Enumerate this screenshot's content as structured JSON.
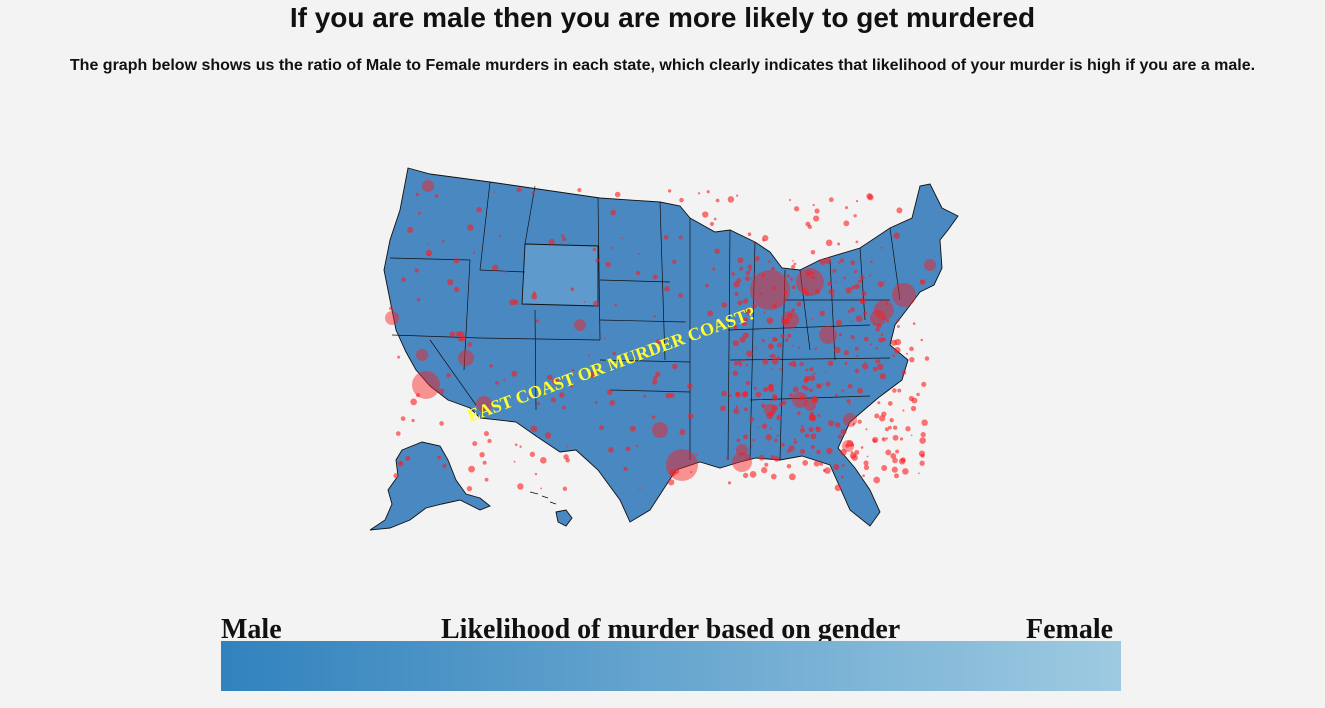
{
  "header": {
    "title": "If you are male then you are more likely to get murdered",
    "subtitle": "The graph below shows us the ratio of Male to Female murders in each state, which clearly indicates that likelihood of your murder is high if you are a male."
  },
  "map": {
    "annotation": "EAST COAST OR MURDER COAST?",
    "colors": {
      "state_fill": "#4a88c2",
      "state_stroke": "#111111",
      "wyoming_fill": "#5e9acb",
      "bubble": "#ff1a1a",
      "annotation": "#ffff33"
    }
  },
  "legend": {
    "male_label": "Male",
    "title": "Likelihood of murder based on gender",
    "female_label": "Female",
    "gradient_start": "#3182bd",
    "gradient_end": "#9ecae1"
  }
}
